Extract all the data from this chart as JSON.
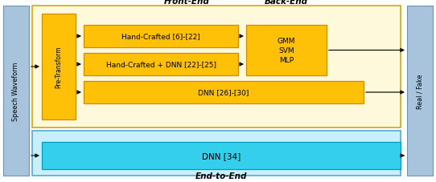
{
  "fig_width": 5.42,
  "fig_height": 2.28,
  "dpi": 100,
  "bg_color": "#ffffff",
  "yellow_light": "#FFF9DC",
  "yellow_orange": "#FFC107",
  "cyan_bright": "#35CFEE",
  "cyan_light": "#C8EFFC",
  "steel_blue": "#A8C4DC",
  "text_dark": "#111111",
  "front_end_label": "Front-End",
  "back_end_label": "Back-End",
  "end_to_end_label": "End-to-End",
  "speech_waveform_label": "Speech Waveform",
  "real_fake_label": "Real / Fake",
  "pre_transform_label": "Pre-Transform",
  "box1_label": "Hand-Crafted [6]-[22]",
  "box2_label": "Hand-Crafted + DNN [22]-[25]",
  "box3_label": "DNN [26]-[30]",
  "backend_label": "GMM\nSVM\nMLP",
  "dnn34_label": "DNN [34]"
}
